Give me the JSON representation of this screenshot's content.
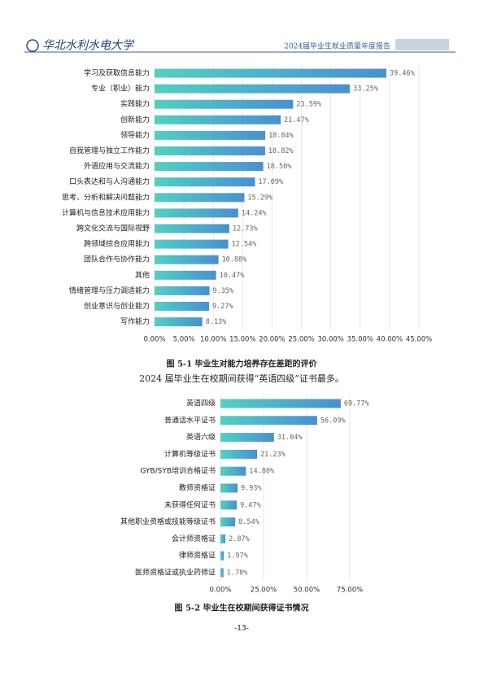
{
  "header": {
    "logo": "华北水利水电大学",
    "title": "2024届毕业生就业质量年度报告"
  },
  "body_text": "2024 届毕业生在校期间获得“英语四级”证书最多。",
  "page_number": "-13-",
  "chart_data": [
    {
      "type": "bar",
      "orientation": "horizontal",
      "title": "图 5-1  毕业生对能力培养存在差距的评价",
      "categories": [
        "学习及获取信息能力",
        "专业（职业）能力",
        "实践能力",
        "创新能力",
        "领导能力",
        "自我管理与独立工作能力",
        "外语应用与交流能力",
        "口头表达和与人沟通能力",
        "思考、分析和解决问题能力",
        "计算机与信息技术应用能力",
        "跨文化交流与国际视野",
        "跨领域综合应用能力",
        "团队合作与协作能力",
        "其他",
        "情绪管理与压力调适能力",
        "创业意识与创业能力",
        "写作能力"
      ],
      "values": [
        39.46,
        33.25,
        23.59,
        21.47,
        18.84,
        18.82,
        18.5,
        17.09,
        15.29,
        14.24,
        12.73,
        12.54,
        10.88,
        10.47,
        9.35,
        9.27,
        8.13
      ],
      "value_labels": [
        "39.46%",
        "33.25%",
        "23.59%",
        "21.47%",
        "18.84%",
        "18.82%",
        "18.50%",
        "17.09%",
        "15.29%",
        "14.24%",
        "12.73%",
        "12.54%",
        "10.88%",
        "10.47%",
        "9.35%",
        "9.27%",
        "8.13%"
      ],
      "xlim": [
        0,
        45
      ],
      "xticks": [
        {
          "value": 0,
          "label": "0.00%"
        },
        {
          "value": 5,
          "label": "5.00%"
        },
        {
          "value": 10,
          "label": "10.00%"
        },
        {
          "value": 15,
          "label": "15.00%"
        },
        {
          "value": 20,
          "label": "20.00%"
        },
        {
          "value": 25,
          "label": "25.00%"
        },
        {
          "value": 30,
          "label": "30.00%"
        },
        {
          "value": 35,
          "label": "35.00%"
        },
        {
          "value": 40,
          "label": "40.00%"
        },
        {
          "value": 45,
          "label": "45.00%"
        }
      ],
      "grid": true,
      "color": "#4a8fd2"
    },
    {
      "type": "bar",
      "orientation": "horizontal",
      "title": "图 5-2  毕业生在校期间获得证书情况",
      "categories": [
        "英语四级",
        "普通话水平证书",
        "英语六级",
        "计算机等级证书",
        "GYB/SYB培训合格证书",
        "教师资格证",
        "未获得任何证书",
        "其他职业资格或技能等级证书",
        "会计师资格证",
        "律师资格证",
        "医师资格证或执业药师证"
      ],
      "values": [
        69.77,
        56.09,
        31.04,
        21.23,
        14.8,
        9.93,
        9.47,
        8.54,
        2.87,
        1.97,
        1.78
      ],
      "value_labels": [
        "69.77%",
        "56.09%",
        "31.04%",
        "21.23%",
        "14.80%",
        "9.93%",
        "9.47%",
        "8.54%",
        "2.87%",
        "1.97%",
        "1.78%"
      ],
      "xlim": [
        0,
        75
      ],
      "xticks": [
        {
          "value": 0,
          "label": "0.00%"
        },
        {
          "value": 25,
          "label": "25.00%"
        },
        {
          "value": 50,
          "label": "50.00%"
        },
        {
          "value": 75,
          "label": "75.00%"
        }
      ],
      "grid": true,
      "color": "#4a8fd2"
    }
  ]
}
